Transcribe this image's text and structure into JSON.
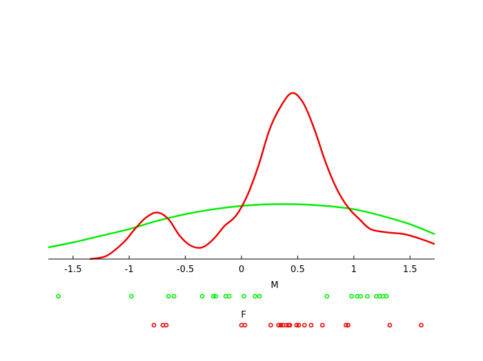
{
  "chart_data": {
    "type": "line",
    "title": "",
    "xlabel": "",
    "ylabel": "",
    "xlim": [
      -1.72,
      1.72
    ],
    "ylim": [
      0,
      1.0
    ],
    "grid": false,
    "xticks": [
      -1.5,
      -1,
      -0.5,
      0,
      0.5,
      1,
      1.5
    ],
    "xtick_labels": [
      "-1.5",
      "-1",
      "-0.5",
      "0",
      "0.5",
      "1",
      "1.5"
    ],
    "series": [
      {
        "color": "#00ee00",
        "x": [
          -1.72,
          -1.5,
          -1.25,
          -1.0,
          -0.75,
          -0.5,
          -0.25,
          0.0,
          0.25,
          0.5,
          0.75,
          1.0,
          1.25,
          1.5,
          1.72
        ],
        "y": [
          0.07,
          0.1,
          0.14,
          0.18,
          0.23,
          0.27,
          0.3,
          0.32,
          0.33,
          0.33,
          0.32,
          0.3,
          0.26,
          0.21,
          0.15
        ]
      },
      {
        "color": "#ee0000",
        "x": [
          -1.35,
          -1.2,
          -1.05,
          -0.95,
          -0.85,
          -0.75,
          -0.65,
          -0.55,
          -0.45,
          -0.35,
          -0.25,
          -0.15,
          -0.05,
          0.05,
          0.15,
          0.25,
          0.35,
          0.45,
          0.55,
          0.65,
          0.75,
          0.85,
          0.95,
          1.05,
          1.15,
          1.3,
          1.45,
          1.6,
          1.72
        ],
        "y": [
          0.0,
          0.02,
          0.1,
          0.18,
          0.25,
          0.28,
          0.24,
          0.14,
          0.08,
          0.07,
          0.12,
          0.2,
          0.26,
          0.38,
          0.56,
          0.78,
          0.92,
          1.0,
          0.94,
          0.78,
          0.58,
          0.42,
          0.31,
          0.24,
          0.18,
          0.16,
          0.15,
          0.12,
          0.09
        ]
      }
    ],
    "rugs": [
      {
        "label": "M",
        "color": "#00ee00",
        "points": [
          -1.63,
          -0.98,
          -0.65,
          -0.6,
          -0.35,
          -0.25,
          -0.23,
          -0.14,
          -0.11,
          0.02,
          0.12,
          0.16,
          0.76,
          0.98,
          1.03,
          1.06,
          1.12,
          1.2,
          1.23,
          1.26,
          1.29
        ]
      },
      {
        "label": "F",
        "color": "#ee0000",
        "points": [
          -0.78,
          -0.7,
          -0.67,
          0.0,
          0.03,
          0.26,
          0.33,
          0.35,
          0.37,
          0.4,
          0.42,
          0.43,
          0.49,
          0.51,
          0.56,
          0.62,
          0.72,
          0.93,
          0.95,
          1.32,
          1.6
        ]
      }
    ]
  }
}
